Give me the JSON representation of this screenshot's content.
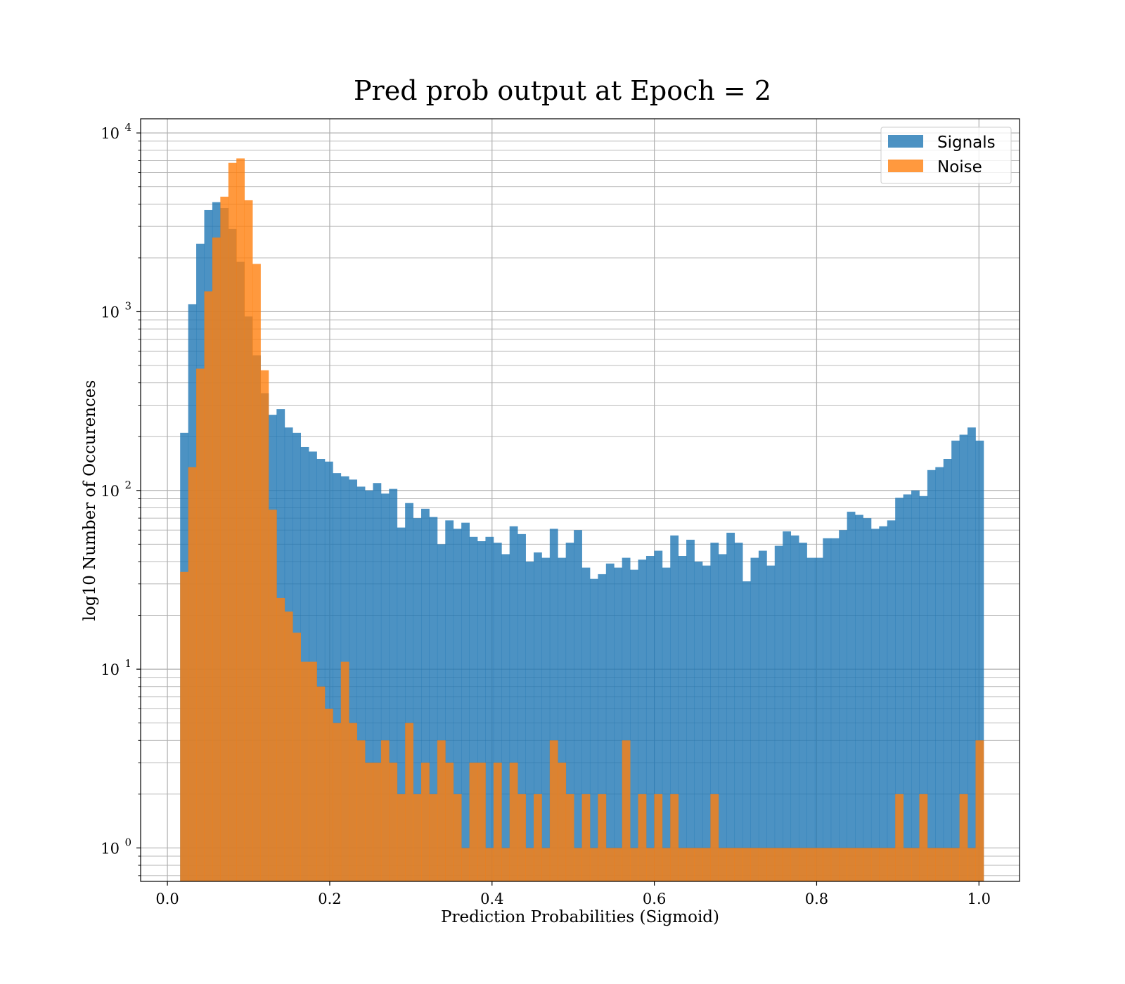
{
  "chart_data": {
    "type": "bar",
    "histogram": true,
    "title": "Pred prob output at Epoch = 2",
    "xlabel": "Prediction Probabilities (Sigmoid)",
    "ylabel": "log10 Number of Occurences",
    "xlim": [
      -0.033,
      1.05
    ],
    "ylim": [
      0.65,
      12000
    ],
    "yscale": "log",
    "grid": true,
    "legend_position": "upper-right",
    "x_ticks": [
      "0.0",
      "0.2",
      "0.4",
      "0.6",
      "0.8",
      "1.0"
    ],
    "x_tick_values": [
      0.0,
      0.2,
      0.4,
      0.6,
      0.8,
      1.0
    ],
    "y_ticks": [
      {
        "base": "10",
        "exp": "0",
        "value": 1
      },
      {
        "base": "10",
        "exp": "1",
        "value": 10
      },
      {
        "base": "10",
        "exp": "2",
        "value": 100
      },
      {
        "base": "10",
        "exp": "3",
        "value": 1000
      },
      {
        "base": "10",
        "exp": "4",
        "value": 10000
      }
    ],
    "bin_edges_start": 0.0157,
    "bin_width": 0.0099,
    "series": [
      {
        "name": "Signals",
        "color": "#1f77b4",
        "opacity": 0.8,
        "values": [
          210,
          1100,
          2400,
          3700,
          4100,
          3800,
          2900,
          1900,
          940,
          570,
          350,
          265,
          285,
          225,
          210,
          175,
          165,
          150,
          145,
          125,
          120,
          115,
          105,
          100,
          110,
          96,
          102,
          62,
          85,
          70,
          79,
          71,
          50,
          68,
          61,
          66,
          55,
          52,
          55,
          51,
          44,
          63,
          57,
          40,
          45,
          42,
          61,
          42,
          51,
          60,
          37,
          32,
          34,
          39,
          37,
          42,
          36,
          41,
          43,
          46,
          37,
          56,
          43,
          53,
          40,
          38,
          51,
          44,
          58,
          51,
          31,
          42,
          46,
          38,
          49,
          59,
          56,
          51,
          42,
          42,
          54,
          54,
          60,
          76,
          73,
          70,
          61,
          63,
          68,
          91,
          95,
          100,
          93,
          130,
          135,
          150,
          190,
          205,
          225,
          190
        ]
      },
      {
        "name": "Noise",
        "color": "#ff7f0e",
        "opacity": 0.8,
        "values": [
          35,
          135,
          480,
          1300,
          2600,
          4400,
          6800,
          7200,
          4200,
          1850,
          470,
          78,
          25,
          21,
          16,
          11,
          11,
          8,
          6,
          5,
          11,
          5,
          4,
          3,
          3,
          4,
          3,
          2,
          5,
          2,
          3,
          2,
          4,
          3,
          2,
          1,
          3,
          3,
          1,
          3,
          1,
          3,
          2,
          1,
          2,
          1,
          4,
          3,
          2,
          1,
          2,
          1,
          2,
          1,
          1,
          4,
          1,
          2,
          1,
          2,
          1,
          2,
          1,
          1,
          1,
          1,
          2,
          1,
          1,
          1,
          1,
          1,
          1,
          1,
          1,
          1,
          1,
          1,
          1,
          1,
          1,
          1,
          1,
          1,
          1,
          1,
          1,
          1,
          1,
          2,
          1,
          1,
          2,
          1,
          1,
          1,
          1,
          2,
          1,
          4
        ]
      }
    ]
  }
}
